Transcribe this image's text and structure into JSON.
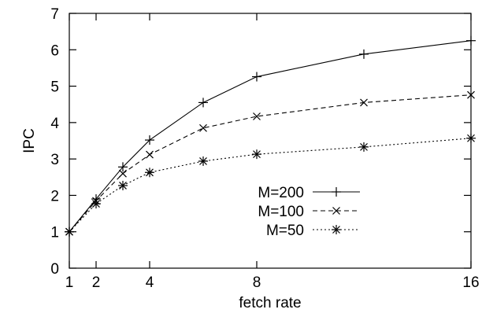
{
  "chart_data": {
    "type": "line",
    "title": "",
    "xlabel": "fetch rate",
    "ylabel": "IPC",
    "xlim": [
      1,
      16
    ],
    "ylim": [
      0,
      7
    ],
    "x_ticks": [
      1,
      2,
      4,
      8,
      16
    ],
    "y_ticks": [
      0,
      1,
      2,
      3,
      4,
      5,
      6,
      7
    ],
    "grid": false,
    "legend_position": "lower-right",
    "series": [
      {
        "name": "M=200",
        "line_style": "solid",
        "marker": "plus",
        "x": [
          1,
          2,
          3,
          4,
          6,
          8,
          12,
          16
        ],
        "values": [
          1.0,
          1.9,
          2.78,
          3.52,
          4.55,
          5.26,
          5.88,
          6.25
        ]
      },
      {
        "name": "M=100",
        "line_style": "dashed",
        "marker": "cross",
        "x": [
          1,
          2,
          3,
          4,
          6,
          8,
          12,
          16
        ],
        "values": [
          1.0,
          1.85,
          2.6,
          3.12,
          3.85,
          4.17,
          4.55,
          4.76
        ]
      },
      {
        "name": "M=50",
        "line_style": "dotted",
        "marker": "star",
        "x": [
          1,
          2,
          3,
          4,
          6,
          8,
          12,
          16
        ],
        "values": [
          1.0,
          1.77,
          2.27,
          2.63,
          2.94,
          3.13,
          3.33,
          3.57
        ]
      }
    ]
  }
}
